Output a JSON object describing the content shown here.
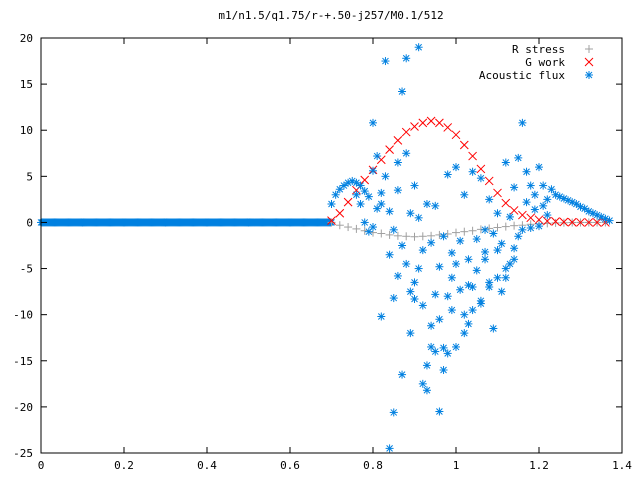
{
  "chart_data": {
    "type": "scatter",
    "title": "m1/n1.5/q1.75/r-+.50-j257/M0.1/512",
    "xlabel": "",
    "ylabel": "",
    "xlim": [
      0,
      1.4
    ],
    "ylim": [
      -25,
      20
    ],
    "x_ticks": [
      "0",
      "0.2",
      "0.4",
      "0.6",
      "0.8",
      "1",
      "1.2",
      "1.4"
    ],
    "y_ticks": [
      "20",
      "15",
      "10",
      "5",
      "0",
      "-5",
      "-10",
      "-15",
      "-20",
      "-25"
    ],
    "grid": false,
    "legend_position": "top-right",
    "series": [
      {
        "name": "R stress",
        "marker": "plus",
        "color": "#a0a0a0",
        "points": [
          [
            0.7,
            0.0
          ],
          [
            0.72,
            -0.3
          ],
          [
            0.74,
            -0.5
          ],
          [
            0.76,
            -0.7
          ],
          [
            0.78,
            -0.9
          ],
          [
            0.8,
            -1.1
          ],
          [
            0.82,
            -1.2
          ],
          [
            0.84,
            -1.35
          ],
          [
            0.86,
            -1.45
          ],
          [
            0.88,
            -1.5
          ],
          [
            0.9,
            -1.55
          ],
          [
            0.92,
            -1.5
          ],
          [
            0.94,
            -1.45
          ],
          [
            0.96,
            -1.35
          ],
          [
            0.98,
            -1.25
          ],
          [
            1.0,
            -1.1
          ],
          [
            1.02,
            -1.0
          ],
          [
            1.04,
            -0.9
          ],
          [
            1.06,
            -0.75
          ],
          [
            1.08,
            -0.65
          ],
          [
            1.1,
            -0.55
          ],
          [
            1.12,
            -0.45
          ],
          [
            1.14,
            -0.35
          ],
          [
            1.16,
            -0.3
          ],
          [
            1.18,
            -0.2
          ],
          [
            1.2,
            -0.15
          ],
          [
            1.22,
            -0.1
          ],
          [
            1.24,
            -0.05
          ],
          [
            1.26,
            -0.03
          ],
          [
            1.28,
            -0.01
          ],
          [
            1.3,
            0.0
          ],
          [
            1.32,
            0.0
          ],
          [
            1.34,
            0.0
          ],
          [
            1.36,
            0.0
          ]
        ]
      },
      {
        "name": "G work",
        "marker": "cross",
        "color": "#ff0000",
        "points": [
          [
            0.7,
            0.2
          ],
          [
            0.72,
            1.0
          ],
          [
            0.74,
            2.2
          ],
          [
            0.76,
            3.5
          ],
          [
            0.78,
            4.6
          ],
          [
            0.8,
            5.7
          ],
          [
            0.82,
            6.8
          ],
          [
            0.84,
            7.9
          ],
          [
            0.86,
            8.9
          ],
          [
            0.88,
            9.8
          ],
          [
            0.9,
            10.4
          ],
          [
            0.92,
            10.8
          ],
          [
            0.94,
            11.0
          ],
          [
            0.96,
            10.8
          ],
          [
            0.98,
            10.3
          ],
          [
            1.0,
            9.5
          ],
          [
            1.02,
            8.4
          ],
          [
            1.04,
            7.2
          ],
          [
            1.06,
            5.8
          ],
          [
            1.08,
            4.5
          ],
          [
            1.1,
            3.2
          ],
          [
            1.12,
            2.1
          ],
          [
            1.14,
            1.3
          ],
          [
            1.16,
            0.8
          ],
          [
            1.18,
            0.5
          ],
          [
            1.2,
            0.3
          ],
          [
            1.22,
            0.15
          ],
          [
            1.24,
            0.1
          ],
          [
            1.26,
            0.05
          ],
          [
            1.28,
            0.02
          ],
          [
            1.3,
            0.0
          ],
          [
            1.32,
            0.0
          ],
          [
            1.34,
            0.0
          ],
          [
            1.36,
            0.0
          ]
        ]
      },
      {
        "name": "Acoustic flux",
        "marker": "star",
        "color": "#0080e0",
        "points": [
          [
            0.7,
            2.0
          ],
          [
            0.71,
            3.0
          ],
          [
            0.72,
            3.6
          ],
          [
            0.73,
            4.0
          ],
          [
            0.74,
            4.3
          ],
          [
            0.75,
            4.5
          ],
          [
            0.76,
            4.3
          ],
          [
            0.77,
            4.0
          ],
          [
            0.78,
            3.4
          ],
          [
            0.79,
            2.8
          ],
          [
            0.8,
            10.8
          ],
          [
            0.81,
            7.2
          ],
          [
            0.82,
            -10.2
          ],
          [
            0.83,
            17.5
          ],
          [
            0.84,
            -24.5
          ],
          [
            0.85,
            -20.6
          ],
          [
            0.86,
            6.5
          ],
          [
            0.87,
            14.2
          ],
          [
            0.87,
            -16.5
          ],
          [
            0.88,
            17.8
          ],
          [
            0.89,
            -7.5
          ],
          [
            0.9,
            -8.3
          ],
          [
            0.91,
            19.0
          ],
          [
            0.92,
            -17.5
          ],
          [
            0.93,
            -18.2
          ],
          [
            0.94,
            -13.5
          ],
          [
            0.95,
            -14.0
          ],
          [
            0.96,
            -20.5
          ],
          [
            0.97,
            -13.6
          ],
          [
            0.98,
            -8.0
          ],
          [
            0.99,
            -6.0
          ],
          [
            1.0,
            -4.5
          ],
          [
            1.01,
            -7.3
          ],
          [
            1.02,
            -10.0
          ],
          [
            1.03,
            -11.0
          ],
          [
            1.04,
            -7.0
          ],
          [
            1.05,
            -5.2
          ],
          [
            1.06,
            -8.8
          ],
          [
            1.07,
            -4.0
          ],
          [
            1.08,
            -7.0
          ],
          [
            1.09,
            -11.5
          ],
          [
            1.1,
            -3.0
          ],
          [
            1.11,
            -7.5
          ],
          [
            1.12,
            -6.0
          ],
          [
            1.13,
            -4.5
          ],
          [
            1.14,
            -2.8
          ],
          [
            1.15,
            -1.5
          ],
          [
            1.16,
            10.8
          ],
          [
            1.17,
            5.5
          ],
          [
            1.18,
            4.0
          ],
          [
            1.19,
            3.0
          ],
          [
            1.2,
            6.0
          ],
          [
            1.21,
            4.0
          ],
          [
            1.22,
            2.5
          ],
          [
            1.23,
            3.6
          ],
          [
            1.24,
            3.0
          ],
          [
            1.25,
            2.8
          ],
          [
            1.26,
            2.6
          ],
          [
            1.27,
            2.4
          ],
          [
            1.28,
            2.2
          ],
          [
            1.29,
            2.0
          ],
          [
            1.3,
            1.7
          ],
          [
            1.31,
            1.5
          ],
          [
            1.32,
            1.2
          ],
          [
            1.33,
            1.0
          ],
          [
            1.34,
            0.8
          ],
          [
            1.35,
            0.6
          ],
          [
            1.36,
            0.4
          ],
          [
            1.37,
            0.2
          ],
          [
            0.76,
            3.0
          ],
          [
            0.77,
            2.0
          ],
          [
            0.78,
            0.0
          ],
          [
            0.79,
            -1.0
          ],
          [
            0.8,
            -0.5
          ],
          [
            0.81,
            1.5
          ],
          [
            0.82,
            3.2
          ],
          [
            0.83,
            5.0
          ],
          [
            0.84,
            1.2
          ],
          [
            0.85,
            -0.8
          ],
          [
            0.86,
            3.5
          ],
          [
            0.88,
            7.5
          ],
          [
            0.89,
            1.0
          ],
          [
            0.9,
            4.0
          ],
          [
            0.91,
            0.5
          ],
          [
            0.92,
            -3.0
          ],
          [
            0.93,
            2.0
          ],
          [
            0.94,
            -2.2
          ],
          [
            0.95,
            1.8
          ],
          [
            0.96,
            -4.8
          ],
          [
            0.97,
            -1.5
          ],
          [
            0.98,
            5.2
          ],
          [
            0.99,
            -3.3
          ],
          [
            1.0,
            6.0
          ],
          [
            1.01,
            -2.0
          ],
          [
            1.02,
            3.0
          ],
          [
            1.03,
            -4.0
          ],
          [
            1.04,
            5.5
          ],
          [
            1.05,
            -1.8
          ],
          [
            1.06,
            4.8
          ],
          [
            1.07,
            -0.8
          ],
          [
            1.08,
            2.5
          ],
          [
            1.09,
            -1.2
          ],
          [
            1.1,
            1.0
          ],
          [
            1.11,
            -2.3
          ],
          [
            1.12,
            6.5
          ],
          [
            1.13,
            0.6
          ],
          [
            1.14,
            3.8
          ],
          [
            1.15,
            7.0
          ],
          [
            1.16,
            -0.8
          ],
          [
            1.17,
            2.2
          ],
          [
            1.18,
            -0.6
          ],
          [
            1.19,
            1.4
          ],
          [
            1.2,
            -0.4
          ],
          [
            1.21,
            1.8
          ],
          [
            1.22,
            0.8
          ],
          [
            0.8,
            5.6
          ],
          [
            0.82,
            2.0
          ],
          [
            0.84,
            -3.5
          ],
          [
            0.86,
            -5.8
          ],
          [
            0.88,
            -4.5
          ],
          [
            0.9,
            -6.5
          ],
          [
            0.92,
            -9.0
          ],
          [
            0.94,
            -11.2
          ],
          [
            0.96,
            -10.5
          ],
          [
            0.98,
            -14.2
          ],
          [
            1.0,
            -13.5
          ],
          [
            1.02,
            -12.0
          ],
          [
            1.04,
            -9.5
          ],
          [
            1.06,
            -8.5
          ],
          [
            1.08,
            -6.5
          ],
          [
            1.1,
            -6.0
          ],
          [
            1.12,
            -5.0
          ],
          [
            1.14,
            -4.0
          ],
          [
            0.85,
            -8.2
          ],
          [
            0.89,
            -12.0
          ],
          [
            0.93,
            -15.5
          ],
          [
            0.97,
            -16.0
          ],
          [
            0.87,
            -2.5
          ],
          [
            0.91,
            -5.0
          ],
          [
            0.95,
            -7.8
          ],
          [
            0.99,
            -9.5
          ],
          [
            1.03,
            -6.8
          ],
          [
            1.07,
            -3.2
          ]
        ]
      }
    ]
  }
}
